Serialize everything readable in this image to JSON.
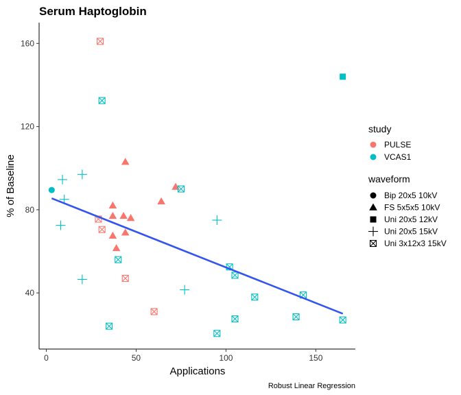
{
  "chart_data": {
    "type": "scatter",
    "title": "Serum Haptoglobin",
    "xlabel": "Applications",
    "ylabel": "% of Baseline",
    "caption": "Robust Linear Regression",
    "xlim": [
      -4,
      172
    ],
    "ylim": [
      13,
      170
    ],
    "xticks": [
      0,
      50,
      100,
      150
    ],
    "yticks": [
      40,
      80,
      120,
      160
    ],
    "grid": false,
    "legend_position": "right",
    "colors": {
      "PULSE": "#F8766D",
      "VCAS1": "#00BFC4",
      "fit": "#3355EE"
    },
    "legend": {
      "study_title": "study",
      "study": [
        "PULSE",
        "VCAS1"
      ],
      "waveform_title": "waveform",
      "waveform": [
        {
          "label": "Bip 20x5 10kV",
          "shape": "circle"
        },
        {
          "label": "FS 5x5x5 10kV",
          "shape": "triangle"
        },
        {
          "label": "Uni 20x5 12kV",
          "shape": "square"
        },
        {
          "label": "Uni 20x5 15kV",
          "shape": "plus"
        },
        {
          "label": "Uni 3x12x3 15kV",
          "shape": "boxcross"
        }
      ]
    },
    "points": [
      {
        "x": 30,
        "y": 161,
        "study": "PULSE",
        "shape": "boxcross"
      },
      {
        "x": 29,
        "y": 75.5,
        "study": "PULSE",
        "shape": "boxcross"
      },
      {
        "x": 31,
        "y": 70.5,
        "study": "PULSE",
        "shape": "boxcross"
      },
      {
        "x": 44,
        "y": 47,
        "study": "PULSE",
        "shape": "boxcross"
      },
      {
        "x": 60,
        "y": 31,
        "study": "PULSE",
        "shape": "boxcross"
      },
      {
        "x": 44,
        "y": 103,
        "study": "PULSE",
        "shape": "triangle"
      },
      {
        "x": 72,
        "y": 91,
        "study": "PULSE",
        "shape": "triangle"
      },
      {
        "x": 64,
        "y": 84,
        "study": "PULSE",
        "shape": "triangle"
      },
      {
        "x": 37,
        "y": 82,
        "study": "PULSE",
        "shape": "triangle"
      },
      {
        "x": 37,
        "y": 77,
        "study": "PULSE",
        "shape": "triangle"
      },
      {
        "x": 43,
        "y": 77,
        "study": "PULSE",
        "shape": "triangle"
      },
      {
        "x": 47,
        "y": 76,
        "study": "PULSE",
        "shape": "triangle"
      },
      {
        "x": 44,
        "y": 69,
        "study": "PULSE",
        "shape": "triangle"
      },
      {
        "x": 37,
        "y": 67.5,
        "study": "PULSE",
        "shape": "triangle"
      },
      {
        "x": 39,
        "y": 61.5,
        "study": "PULSE",
        "shape": "triangle"
      },
      {
        "x": 3,
        "y": 89.5,
        "study": "VCAS1",
        "shape": "circle"
      },
      {
        "x": 165,
        "y": 144,
        "study": "VCAS1",
        "shape": "square"
      },
      {
        "x": 20,
        "y": 97,
        "study": "VCAS1",
        "shape": "plus"
      },
      {
        "x": 9,
        "y": 94.5,
        "study": "VCAS1",
        "shape": "plus"
      },
      {
        "x": 10,
        "y": 85,
        "study": "VCAS1",
        "shape": "plus"
      },
      {
        "x": 8,
        "y": 72.5,
        "study": "VCAS1",
        "shape": "plus"
      },
      {
        "x": 95,
        "y": 75,
        "study": "VCAS1",
        "shape": "plus"
      },
      {
        "x": 20,
        "y": 46.5,
        "study": "VCAS1",
        "shape": "plus"
      },
      {
        "x": 77,
        "y": 41.5,
        "study": "VCAS1",
        "shape": "plus"
      },
      {
        "x": 31,
        "y": 132.5,
        "study": "VCAS1",
        "shape": "boxcross"
      },
      {
        "x": 75,
        "y": 90,
        "study": "VCAS1",
        "shape": "boxcross"
      },
      {
        "x": 40,
        "y": 56,
        "study": "VCAS1",
        "shape": "boxcross"
      },
      {
        "x": 102,
        "y": 52.5,
        "study": "VCAS1",
        "shape": "boxcross"
      },
      {
        "x": 105,
        "y": 48.5,
        "study": "VCAS1",
        "shape": "boxcross"
      },
      {
        "x": 143,
        "y": 39,
        "study": "VCAS1",
        "shape": "boxcross"
      },
      {
        "x": 116,
        "y": 38,
        "study": "VCAS1",
        "shape": "boxcross"
      },
      {
        "x": 139,
        "y": 28.5,
        "study": "VCAS1",
        "shape": "boxcross"
      },
      {
        "x": 105,
        "y": 27.5,
        "study": "VCAS1",
        "shape": "boxcross"
      },
      {
        "x": 165,
        "y": 27,
        "study": "VCAS1",
        "shape": "boxcross"
      },
      {
        "x": 35,
        "y": 24,
        "study": "VCAS1",
        "shape": "boxcross"
      },
      {
        "x": 95,
        "y": 20.5,
        "study": "VCAS1",
        "shape": "boxcross"
      }
    ],
    "fit_line": {
      "label": "Robust Linear Regression",
      "x": [
        3,
        165
      ],
      "y": [
        85.5,
        30
      ]
    }
  }
}
